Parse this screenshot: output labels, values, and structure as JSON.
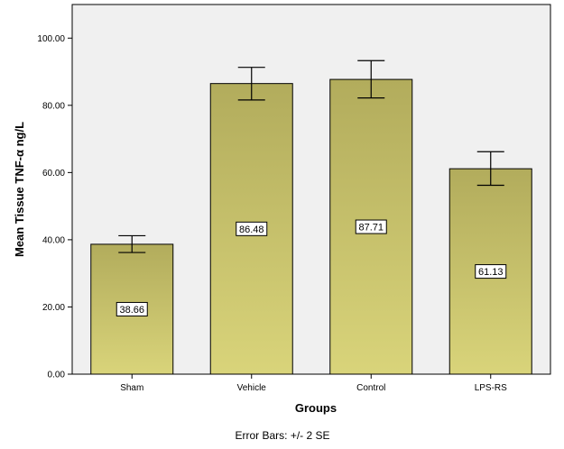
{
  "chart_data": {
    "type": "bar",
    "categories": [
      "Sham",
      "Vehicle",
      "Control",
      "LPS-RS"
    ],
    "values": [
      38.66,
      86.48,
      87.71,
      61.13
    ],
    "value_labels": [
      "38.66",
      "86.48",
      "87.71",
      "61.13"
    ],
    "error_bars": {
      "lower": [
        36.2,
        81.6,
        82.2,
        56.2
      ],
      "upper": [
        41.2,
        91.3,
        93.3,
        66.2
      ]
    },
    "xlabel": "Groups",
    "ylabel": "Mean Tissue TNF-α ng/L",
    "ylim": [
      0,
      110
    ],
    "yticks": [
      0,
      20,
      40,
      60,
      80,
      100
    ],
    "ytick_labels": [
      "0.00",
      "20.00",
      "40.00",
      "60.00",
      "80.00",
      "100.00"
    ],
    "footnote": "Error Bars: +/- 2 SE",
    "grid": false,
    "colors": {
      "plot_background": "#f0f0f0",
      "bar_fill_top": "#b2ac5c",
      "bar_fill_bottom": "#d9d47a",
      "bar_stroke": "#000000"
    }
  }
}
